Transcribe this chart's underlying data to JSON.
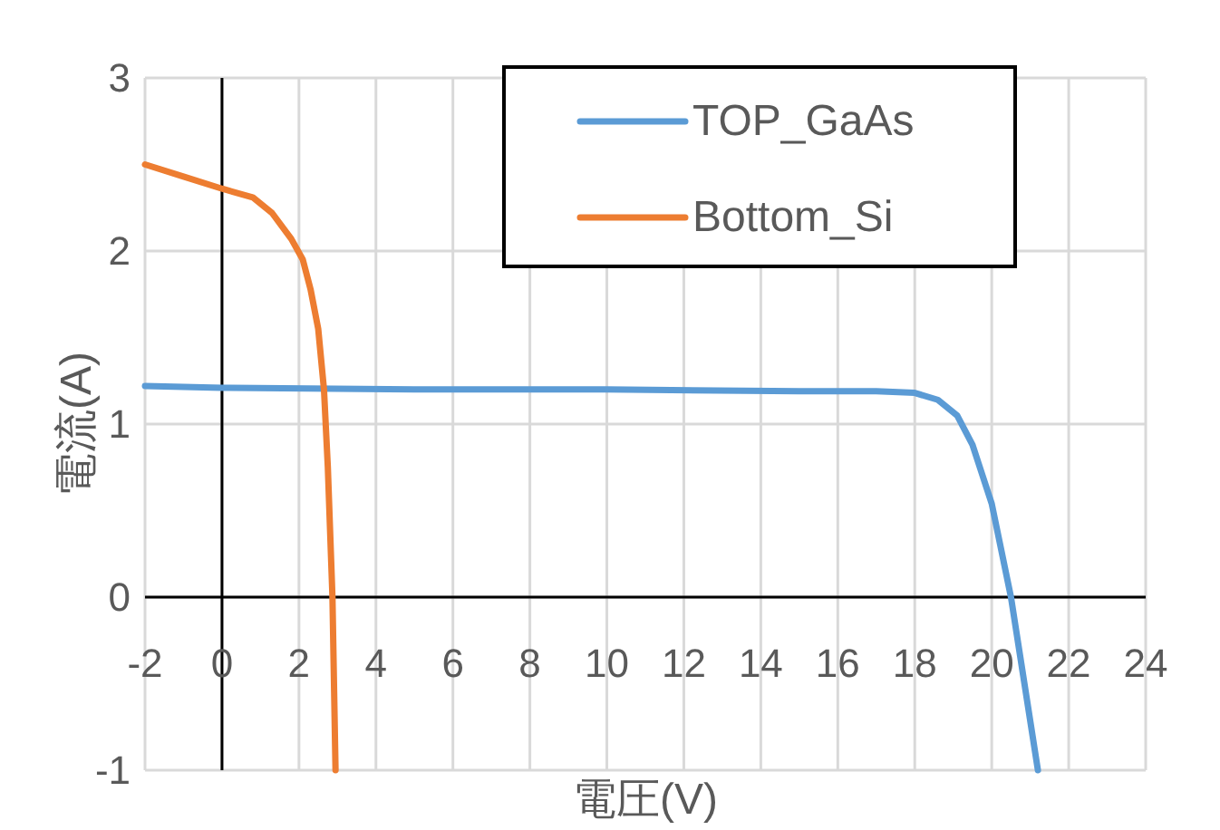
{
  "chart_data": {
    "type": "line",
    "xlabel": "電圧(V)",
    "ylabel": "電流(A)",
    "xlim": [
      -2,
      24
    ],
    "xticks": [
      -2,
      0,
      2,
      4,
      6,
      8,
      10,
      12,
      14,
      16,
      18,
      20,
      22,
      24
    ],
    "ylim": [
      -1,
      3
    ],
    "yticks": [
      -1,
      0,
      1,
      2,
      3
    ],
    "grid": true,
    "legend": "top right",
    "marker": "none",
    "line_style": "solid",
    "series": [
      {
        "name": "TOP_GaAs",
        "color": "#5b9bd5",
        "x": [
          -2,
          0,
          5,
          10,
          15,
          17,
          18,
          18.6,
          19.1,
          19.5,
          20,
          20.5,
          21.2
        ],
        "values": [
          1.22,
          1.21,
          1.2,
          1.2,
          1.19,
          1.19,
          1.18,
          1.14,
          1.05,
          0.88,
          0.54,
          0,
          -1
        ]
      },
      {
        "name": "Bottom_Si",
        "color": "#ed7d31",
        "x": [
          -2,
          -1,
          0,
          0.8,
          1.3,
          1.8,
          2.1,
          2.3,
          2.5,
          2.65,
          2.75,
          2.87,
          2.95
        ],
        "values": [
          2.5,
          2.43,
          2.36,
          2.31,
          2.22,
          2.07,
          1.95,
          1.78,
          1.55,
          1.2,
          0.75,
          0,
          -1
        ]
      }
    ]
  }
}
